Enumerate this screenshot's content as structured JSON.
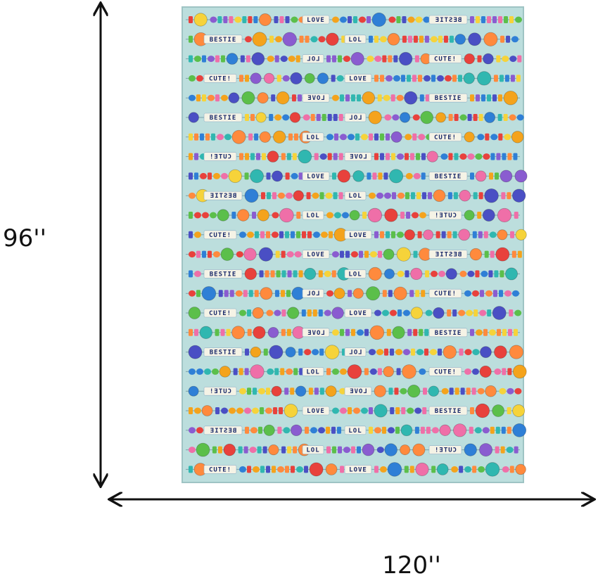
{
  "dimensions": {
    "height_label": "96''",
    "width_label": "120''"
  },
  "rug": {
    "bead_words": [
      "LOVE",
      "BESTIE",
      "LOL",
      "CUTE!"
    ]
  }
}
